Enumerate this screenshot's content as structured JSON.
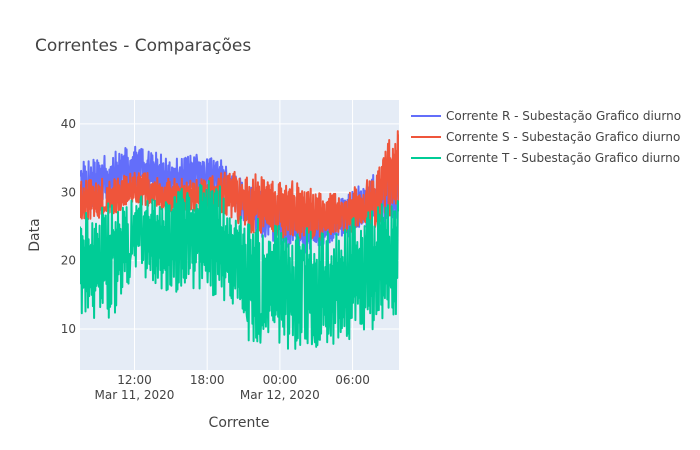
{
  "chart_data": {
    "type": "line",
    "title": "Correntes - Comparações",
    "xlabel": "Corrente",
    "ylabel": "Data",
    "x_range": [
      "2020-03-11T07:30",
      "2020-03-12T09:50"
    ],
    "ylim": [
      4,
      43.5
    ],
    "y_ticks": [
      10,
      20,
      30,
      40
    ],
    "x_ticks": [
      {
        "value": "2020-03-11T12:00",
        "label": "12:00",
        "sublabel": "Mar 11, 2020"
      },
      {
        "value": "2020-03-11T18:00",
        "label": "18:00",
        "sublabel": ""
      },
      {
        "value": "2020-03-12T00:00",
        "label": "00:00",
        "sublabel": "Mar 12, 2020"
      },
      {
        "value": "2020-03-12T06:00",
        "label": "06:00",
        "sublabel": ""
      }
    ],
    "grid": true,
    "legend_position": "top-right",
    "series": [
      {
        "name": "Corrente R - Subestação Grafico diurno",
        "color": "#636efa",
        "x": [
          "2020-03-11T07:30",
          "2020-03-11T09:00",
          "2020-03-11T10:30",
          "2020-03-11T12:00",
          "2020-03-11T13:00",
          "2020-03-11T14:00",
          "2020-03-11T15:00",
          "2020-03-11T16:00",
          "2020-03-11T17:00",
          "2020-03-11T18:00",
          "2020-03-11T19:00",
          "2020-03-11T20:00",
          "2020-03-11T21:30",
          "2020-03-11T23:00",
          "2020-03-12T00:30",
          "2020-03-12T02:00",
          "2020-03-12T03:30",
          "2020-03-12T05:00",
          "2020-03-12T06:30",
          "2020-03-12T08:00",
          "2020-03-12T09:30"
        ],
        "low": [
          27,
          28,
          29,
          31,
          30,
          29,
          28,
          29,
          30,
          30,
          29,
          28,
          24,
          23,
          22,
          21,
          22,
          23,
          24,
          25,
          26
        ],
        "high": [
          35,
          35,
          36,
          37,
          36,
          36,
          35,
          35,
          36,
          35,
          35,
          33,
          31,
          30,
          29,
          28,
          28,
          29,
          31,
          33,
          34
        ]
      },
      {
        "name": "Corrente S - Subestação Grafico diurno",
        "color": "#ef553b",
        "x": [
          "2020-03-11T07:30",
          "2020-03-11T09:00",
          "2020-03-11T10:30",
          "2020-03-11T12:00",
          "2020-03-11T13:00",
          "2020-03-11T14:00",
          "2020-03-11T15:00",
          "2020-03-11T16:00",
          "2020-03-11T17:00",
          "2020-03-11T18:00",
          "2020-03-11T19:00",
          "2020-03-11T20:00",
          "2020-03-11T21:30",
          "2020-03-11T23:00",
          "2020-03-12T00:30",
          "2020-03-12T02:00",
          "2020-03-12T03:30",
          "2020-03-12T05:00",
          "2020-03-12T06:30",
          "2020-03-12T08:00",
          "2020-03-12T09:30"
        ],
        "low": [
          26,
          26,
          27,
          28,
          28,
          27,
          27,
          27,
          27,
          27,
          27,
          26,
          24,
          24,
          23,
          23,
          23,
          24,
          24,
          25,
          27
        ],
        "high": [
          32,
          32,
          32,
          33,
          33,
          32,
          32,
          32,
          32,
          32,
          33,
          33,
          33,
          32,
          32,
          31,
          30,
          30,
          31,
          33,
          40
        ]
      },
      {
        "name": "Corrente T - Subestação Grafico diurno",
        "color": "#00cc96",
        "x": [
          "2020-03-11T07:30",
          "2020-03-11T09:00",
          "2020-03-11T10:30",
          "2020-03-11T12:00",
          "2020-03-11T13:00",
          "2020-03-11T14:00",
          "2020-03-11T15:00",
          "2020-03-11T16:00",
          "2020-03-11T17:00",
          "2020-03-11T18:00",
          "2020-03-11T19:00",
          "2020-03-11T20:00",
          "2020-03-11T21:30",
          "2020-03-11T23:00",
          "2020-03-12T00:30",
          "2020-03-12T02:00",
          "2020-03-12T03:30",
          "2020-03-12T05:00",
          "2020-03-12T06:30",
          "2020-03-12T08:00",
          "2020-03-12T09:30"
        ],
        "low": [
          12,
          11,
          12,
          18,
          17,
          16,
          15,
          15,
          16,
          15,
          14,
          12,
          8,
          7,
          7,
          7,
          7,
          8,
          9,
          10,
          12
        ],
        "high": [
          27,
          28,
          29,
          31,
          31,
          30,
          30,
          31,
          32,
          32,
          31,
          29,
          27,
          26,
          25,
          25,
          25,
          25,
          27,
          28,
          29
        ]
      }
    ]
  }
}
